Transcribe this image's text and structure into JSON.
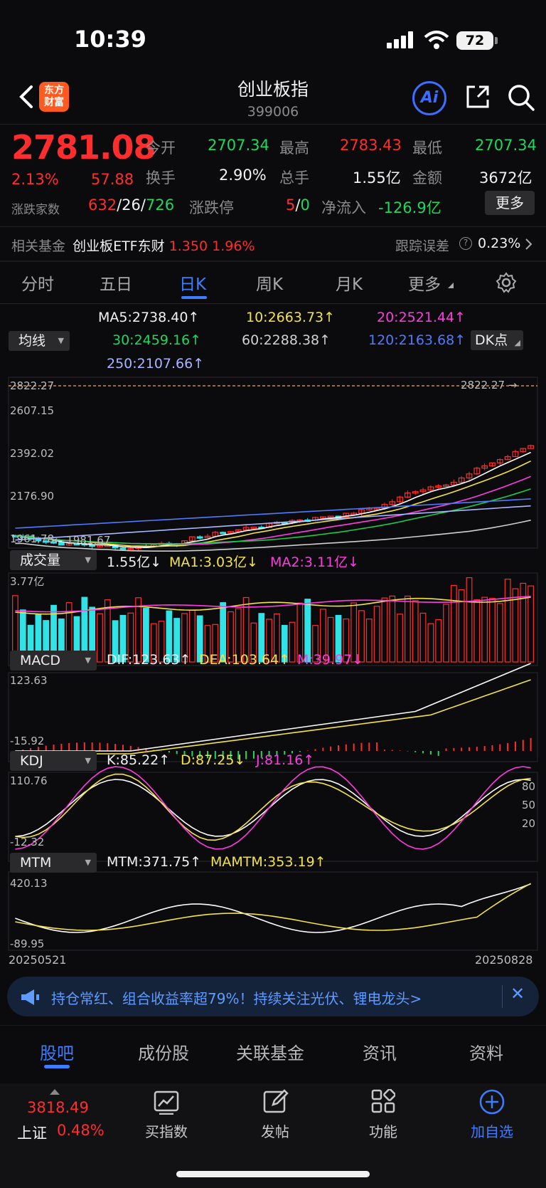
{
  "status": {
    "time": "10:39",
    "battery": "72"
  },
  "header": {
    "logo": "东方\n财富",
    "title": "创业板指",
    "code": "399006",
    "ai_label": "Ai"
  },
  "quote": {
    "price": "2781.08",
    "change_pct": "2.13%",
    "change": "57.88",
    "open_label": "今开",
    "open": "2707.34",
    "high_label": "最高",
    "high": "2783.43",
    "low_label": "最低",
    "low": "2707.34",
    "turnover_label": "换手",
    "turnover": "2.90%",
    "volume_label": "总手",
    "volume": "1.55亿",
    "amount_label": "金额",
    "amount": "3672亿",
    "breadth_label": "涨跌家数",
    "up": "632",
    "flat": "26",
    "down": "726",
    "limit_label": "涨跌停",
    "limit_up": "5",
    "limit_down": "0",
    "netflow_label": "净流入",
    "netflow": "-126.9亿",
    "more": "更多"
  },
  "fund": {
    "label": "相关基金",
    "name": "创业板ETF东财",
    "price": "1.350",
    "pct": "1.96%",
    "track_label": "跟踪误差",
    "track_value": "0.23%"
  },
  "tabs": [
    "分时",
    "五日",
    "日K",
    "周K",
    "月K",
    "更多"
  ],
  "ma": {
    "selector": "均线",
    "ma5": "MA5:2738.40↑",
    "ma10": "10:2663.73↑",
    "ma20": "20:2521.44↑",
    "ma30": "30:2459.16↑",
    "ma60": "60:2288.38↑",
    "ma120": "120:2163.68↑",
    "ma250": "250:2107.66↑",
    "dk": "DK点"
  },
  "kline_axis": {
    "top": "2822.27",
    "l2": "2607.15",
    "l3": "2392.02",
    "l4": "2176.90",
    "bottom": "1961.78",
    "high_mark": "2822.27",
    "low_mark": "1981.67"
  },
  "volume": {
    "selector": "成交量",
    "v": "1.55亿↓",
    "ma1": "MA1:3.03亿↓",
    "ma2": "MA2:3.11亿↓",
    "top": "3.77亿"
  },
  "macd": {
    "selector": "MACD",
    "dif": "DIF:123.63↑",
    "dea": "DEA:103.64↑",
    "m": "M:39.97↓",
    "top": "123.63",
    "bottom": "-15.92"
  },
  "kdj": {
    "selector": "KDJ",
    "k": "K:85.22↑",
    "d": "D:87.25↓",
    "j": "J:81.16↑",
    "top": "110.76",
    "bottom": "-12.32",
    "l80": "80",
    "l50": "50",
    "l20": "20"
  },
  "mtm": {
    "selector": "MTM",
    "mtm": "MTM:371.75↑",
    "mamtm": "MAMTM:353.19↑",
    "top": "420.13",
    "bottom": "-89.95"
  },
  "dates": {
    "start": "20250521",
    "end": "20250828"
  },
  "banner": "持仓常红、组合收益率超79%！持续关注光伏、锂电龙头>",
  "bottom_tabs": [
    "股吧",
    "成份股",
    "关联基金",
    "资讯",
    "资料"
  ],
  "nav": {
    "index_value": "3818.49",
    "index_name": "上证",
    "index_pct": "0.48%",
    "buy": "买指数",
    "post": "发帖",
    "func": "功能",
    "add": "加自选"
  },
  "colors": {
    "up": "#ff2d2d",
    "down": "#1ed760",
    "accent": "#3d7dff",
    "cyan": "#2fe3e6"
  }
}
